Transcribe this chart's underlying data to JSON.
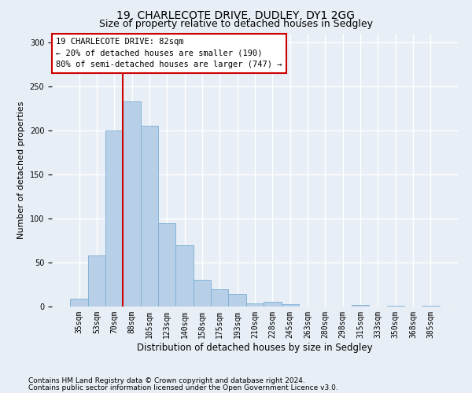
{
  "title_line1": "19, CHARLECOTE DRIVE, DUDLEY, DY1 2GG",
  "title_line2": "Size of property relative to detached houses in Sedgley",
  "xlabel": "Distribution of detached houses by size in Sedgley",
  "ylabel": "Number of detached properties",
  "categories": [
    "35sqm",
    "53sqm",
    "70sqm",
    "88sqm",
    "105sqm",
    "123sqm",
    "140sqm",
    "158sqm",
    "175sqm",
    "193sqm",
    "210sqm",
    "228sqm",
    "245sqm",
    "263sqm",
    "280sqm",
    "298sqm",
    "315sqm",
    "333sqm",
    "350sqm",
    "368sqm",
    "385sqm"
  ],
  "values": [
    9,
    58,
    200,
    233,
    205,
    95,
    70,
    30,
    20,
    14,
    4,
    5,
    3,
    0,
    0,
    0,
    2,
    0,
    1,
    0,
    1
  ],
  "bar_color": "#b8cfe8",
  "bar_edge_color": "#7aafd4",
  "red_line_index": 3,
  "annotation_text": "19 CHARLECOTE DRIVE: 82sqm\n← 20% of detached houses are smaller (190)\n80% of semi-detached houses are larger (747) →",
  "annotation_box_color": "#ffffff",
  "annotation_box_edge": "#cc0000",
  "ylim": [
    0,
    310
  ],
  "yticks": [
    0,
    50,
    100,
    150,
    200,
    250,
    300
  ],
  "footer_line1": "Contains HM Land Registry data © Crown copyright and database right 2024.",
  "footer_line2": "Contains public sector information licensed under the Open Government Licence v3.0.",
  "bg_color": "#e8eef5",
  "plot_bg_color": "#e8eef5",
  "grid_color": "#ffffff",
  "title_fontsize": 10,
  "subtitle_fontsize": 9,
  "tick_fontsize": 7,
  "ylabel_fontsize": 8,
  "xlabel_fontsize": 8.5,
  "footer_fontsize": 6.5,
  "annotation_fontsize": 7.5
}
